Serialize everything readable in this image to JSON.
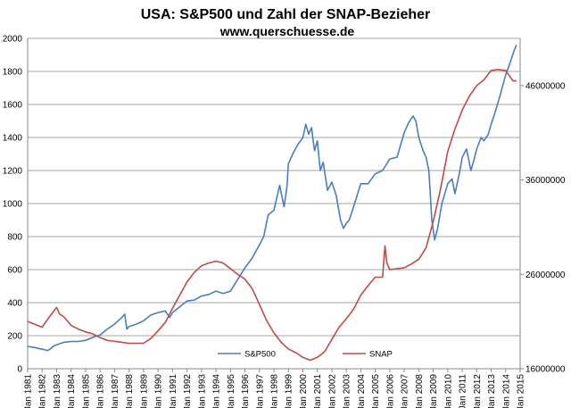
{
  "chart_data": {
    "type": "line",
    "title": "USA: S&P500 und Zahl der SNAP-Bezieher",
    "subtitle": "www.querschuesse.de",
    "colors": {
      "sp500": "#4a7ebb",
      "snap": "#be4b48",
      "grid": "#888888",
      "axis": "#888888"
    },
    "grid": true,
    "legend_position": "bottom-center",
    "x_ticks": [
      "Jan 1981",
      "Jan 1982",
      "Jan 1983",
      "Jan 1984",
      "Jan 1985",
      "Jan 1986",
      "Jan 1987",
      "Jan 1988",
      "Jan 1989",
      "Jan 1990",
      "Jan 1991",
      "Jan 1992",
      "Jan 1993",
      "Jan 1994",
      "Jan 1995",
      "Jan 1996",
      "Jan 1997",
      "Jan 1998",
      "Jan 1999",
      "Jan 2000",
      "Jan 2001",
      "Jan 2002",
      "Jan 2003",
      "Jan 2004",
      "Jan 2005",
      "Jan 2006",
      "Jan 2007",
      "Jan 2008",
      "Jan 2009",
      "Jan 2010",
      "Jan 2011",
      "Jan 2012",
      "Jan 2013",
      "Jan 2014",
      "Jan 2015"
    ],
    "xlim": [
      1981,
      2015
    ],
    "y_left": {
      "lim": [
        0,
        2000
      ],
      "ticks": [
        "0",
        "200",
        "400",
        "600",
        "800",
        "1000",
        "1200",
        "1400",
        "1600",
        "1800",
        "2000"
      ]
    },
    "y_right": {
      "lim": [
        16000000,
        51000000
      ],
      "ticks": [
        "16000000",
        "26000000",
        "36000000",
        "46000000"
      ]
    },
    "series": [
      {
        "name": "S&P500",
        "axis": "left",
        "x": [
          1981.0,
          1981.5,
          1982.0,
          1982.4,
          1982.6,
          1982.8,
          1983.0,
          1983.5,
          1984.0,
          1984.5,
          1985.0,
          1985.5,
          1986.0,
          1986.5,
          1987.0,
          1987.5,
          1987.7,
          1987.85,
          1988.0,
          1988.5,
          1989.0,
          1989.5,
          1990.0,
          1990.5,
          1990.8,
          1991.0,
          1991.5,
          1992.0,
          1992.5,
          1993.0,
          1993.5,
          1994.0,
          1994.5,
          1995.0,
          1995.5,
          1996.0,
          1996.5,
          1997.0,
          1997.3,
          1997.6,
          1998.0,
          1998.4,
          1998.7,
          1998.9,
          1999.0,
          1999.3,
          1999.6,
          2000.0,
          2000.2,
          2000.4,
          2000.6,
          2000.8,
          2001.0,
          2001.2,
          2001.4,
          2001.7,
          2002.0,
          2002.3,
          2002.6,
          2002.8,
          2003.0,
          2003.2,
          2003.5,
          2004.0,
          2004.5,
          2005.0,
          2005.5,
          2006.0,
          2006.5,
          2007.0,
          2007.3,
          2007.6,
          2007.8,
          2008.0,
          2008.3,
          2008.5,
          2008.7,
          2008.9,
          2009.1,
          2009.3,
          2009.6,
          2010.0,
          2010.3,
          2010.5,
          2010.8,
          2011.0,
          2011.3,
          2011.6,
          2011.8,
          2012.0,
          2012.3,
          2012.5,
          2012.8,
          2013.0,
          2013.3,
          2013.6,
          2014.0,
          2014.3,
          2014.6,
          2014.75
        ],
        "values": [
          135,
          128,
          118,
          110,
          122,
          138,
          145,
          160,
          165,
          165,
          172,
          190,
          205,
          240,
          270,
          310,
          330,
          240,
          255,
          270,
          290,
          325,
          340,
          350,
          310,
          340,
          375,
          410,
          415,
          440,
          450,
          470,
          455,
          470,
          540,
          610,
          670,
          750,
          800,
          930,
          960,
          1110,
          980,
          1100,
          1240,
          1300,
          1350,
          1400,
          1480,
          1420,
          1460,
          1320,
          1380,
          1200,
          1250,
          1080,
          1130,
          1050,
          900,
          850,
          880,
          900,
          980,
          1120,
          1120,
          1180,
          1200,
          1270,
          1280,
          1430,
          1490,
          1530,
          1500,
          1400,
          1320,
          1280,
          1200,
          900,
          780,
          850,
          1000,
          1120,
          1150,
          1060,
          1180,
          1280,
          1330,
          1200,
          1260,
          1330,
          1400,
          1380,
          1420,
          1480,
          1560,
          1650,
          1780,
          1850,
          1930,
          1960
        ]
      },
      {
        "name": "SNAP",
        "axis": "right",
        "x": [
          1981.0,
          1981.5,
          1982.0,
          1982.5,
          1983.0,
          1983.2,
          1983.5,
          1984.0,
          1984.5,
          1985.0,
          1985.5,
          1986.0,
          1986.5,
          1987.0,
          1987.5,
          1988.0,
          1988.5,
          1989.0,
          1989.5,
          1990.0,
          1990.5,
          1991.0,
          1991.5,
          1992.0,
          1992.5,
          1993.0,
          1993.5,
          1994.0,
          1994.5,
          1995.0,
          1995.5,
          1996.0,
          1996.5,
          1997.0,
          1997.5,
          1998.0,
          1998.5,
          1999.0,
          1999.5,
          2000.0,
          2000.5,
          2001.0,
          2001.5,
          2002.0,
          2002.5,
          2003.0,
          2003.5,
          2004.0,
          2004.5,
          2005.0,
          2005.5,
          2005.67,
          2005.8,
          2006.0,
          2006.5,
          2007.0,
          2007.5,
          2008.0,
          2008.5,
          2009.0,
          2009.5,
          2010.0,
          2010.5,
          2011.0,
          2011.5,
          2012.0,
          2012.5,
          2013.0,
          2013.5,
          2014.0,
          2014.5,
          2014.75
        ],
        "values": [
          21000000,
          20700000,
          20400000,
          21500000,
          22500000,
          21800000,
          21500000,
          20600000,
          20200000,
          19900000,
          19700000,
          19300000,
          19000000,
          18900000,
          18800000,
          18700000,
          18700000,
          18700000,
          19200000,
          20000000,
          20900000,
          22400000,
          23800000,
          25200000,
          26200000,
          26900000,
          27200000,
          27400000,
          27200000,
          26600000,
          26000000,
          25500000,
          24500000,
          22800000,
          21100000,
          19800000,
          18800000,
          18100000,
          17700000,
          17200000,
          16900000,
          17200000,
          17800000,
          19100000,
          20400000,
          21300000,
          22300000,
          23800000,
          24800000,
          25700000,
          25700000,
          29000000,
          27200000,
          26500000,
          26600000,
          26700000,
          27100000,
          27600000,
          28800000,
          31600000,
          35000000,
          39000000,
          41400000,
          43400000,
          44900000,
          46000000,
          46600000,
          47600000,
          47700000,
          47600000,
          46500000,
          46500000
        ]
      }
    ]
  }
}
